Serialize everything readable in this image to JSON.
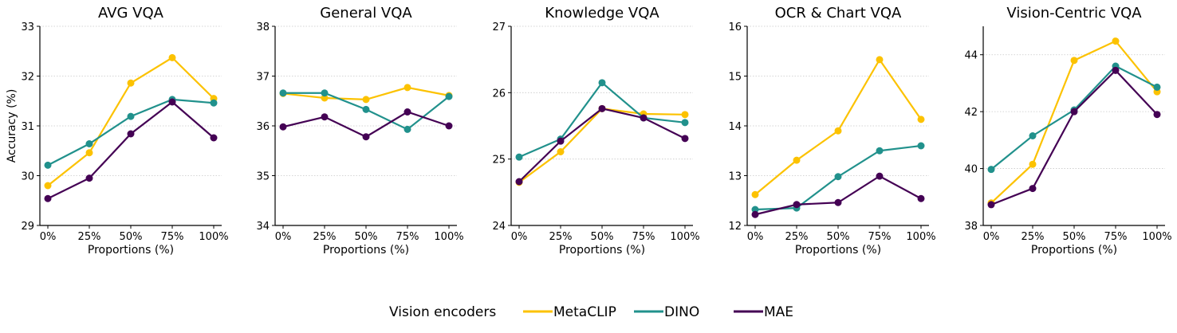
{
  "chart_data": [
    {
      "type": "line",
      "title": "AVG VQA",
      "xlabel": "Proportions (%)",
      "ylabel": "Accuracy (%)",
      "categories": [
        "0%",
        "25%",
        "50%",
        "75%",
        "100%"
      ],
      "ylim": [
        29,
        33
      ],
      "yticks": [
        29,
        30,
        31,
        32,
        33
      ],
      "grid": "horizontal dotted",
      "series": [
        {
          "name": "MetaCLIP",
          "values": [
            29.8,
            30.46,
            31.86,
            32.37,
            31.55
          ]
        },
        {
          "name": "DINO",
          "values": [
            30.21,
            30.64,
            31.19,
            31.53,
            31.46
          ]
        },
        {
          "name": "MAE",
          "values": [
            29.54,
            29.95,
            30.84,
            31.48,
            30.76
          ]
        }
      ]
    },
    {
      "type": "line",
      "title": "General VQA",
      "xlabel": "Proportions (%)",
      "ylabel": "",
      "categories": [
        "0%",
        "25%",
        "50%",
        "75%",
        "100%"
      ],
      "ylim": [
        34,
        38
      ],
      "yticks": [
        34,
        35,
        36,
        37,
        38
      ],
      "grid": "horizontal dotted",
      "series": [
        {
          "name": "MetaCLIP",
          "values": [
            36.65,
            36.56,
            36.53,
            36.77,
            36.61
          ]
        },
        {
          "name": "DINO",
          "values": [
            36.66,
            36.66,
            36.33,
            35.93,
            36.59
          ]
        },
        {
          "name": "MAE",
          "values": [
            35.98,
            36.18,
            35.78,
            36.28,
            36.0
          ]
        }
      ]
    },
    {
      "type": "line",
      "title": "Knowledge VQA",
      "xlabel": "Proportions (%)",
      "ylabel": "",
      "categories": [
        "0%",
        "25%",
        "50%",
        "75%",
        "100%"
      ],
      "ylim": [
        24,
        27
      ],
      "yticks": [
        24,
        25,
        26,
        27
      ],
      "grid": "horizontal dotted",
      "series": [
        {
          "name": "MetaCLIP",
          "values": [
            24.65,
            25.11,
            25.76,
            25.68,
            25.67
          ]
        },
        {
          "name": "DINO",
          "values": [
            25.03,
            25.3,
            26.15,
            25.62,
            25.55
          ]
        },
        {
          "name": "MAE",
          "values": [
            24.66,
            25.27,
            25.76,
            25.62,
            25.31
          ]
        }
      ]
    },
    {
      "type": "line",
      "title": "OCR & Chart VQA",
      "xlabel": "Proportions (%)",
      "ylabel": "",
      "categories": [
        "0%",
        "25%",
        "50%",
        "75%",
        "100%"
      ],
      "ylim": [
        12,
        16
      ],
      "yticks": [
        12,
        13,
        14,
        15,
        16
      ],
      "grid": "horizontal dotted",
      "series": [
        {
          "name": "MetaCLIP",
          "values": [
            12.62,
            13.31,
            13.9,
            15.33,
            14.13
          ]
        },
        {
          "name": "DINO",
          "values": [
            12.32,
            12.35,
            12.98,
            13.5,
            13.6
          ]
        },
        {
          "name": "MAE",
          "values": [
            12.22,
            12.42,
            12.46,
            12.99,
            12.54
          ]
        }
      ]
    },
    {
      "type": "line",
      "title": "Vision-Centric VQA",
      "xlabel": "Proportions (%)",
      "ylabel": "",
      "categories": [
        "0%",
        "25%",
        "50%",
        "75%",
        "100%"
      ],
      "ylim": [
        38,
        45
      ],
      "yticks": [
        38,
        40,
        42,
        44
      ],
      "grid": "horizontal dotted",
      "series": [
        {
          "name": "MetaCLIP",
          "values": [
            38.79,
            40.15,
            43.8,
            44.48,
            42.7
          ]
        },
        {
          "name": "DINO",
          "values": [
            39.97,
            41.15,
            42.06,
            43.6,
            42.86
          ]
        },
        {
          "name": "MAE",
          "values": [
            38.73,
            39.3,
            42.0,
            43.45,
            41.9
          ]
        }
      ]
    }
  ],
  "legend": {
    "title": "Vision encoders",
    "placement": "bottom-center",
    "items": [
      {
        "name": "MetaCLIP",
        "color": "#fcc200"
      },
      {
        "name": "DINO",
        "color": "#21918c"
      },
      {
        "name": "MAE",
        "color": "#440154"
      }
    ]
  }
}
